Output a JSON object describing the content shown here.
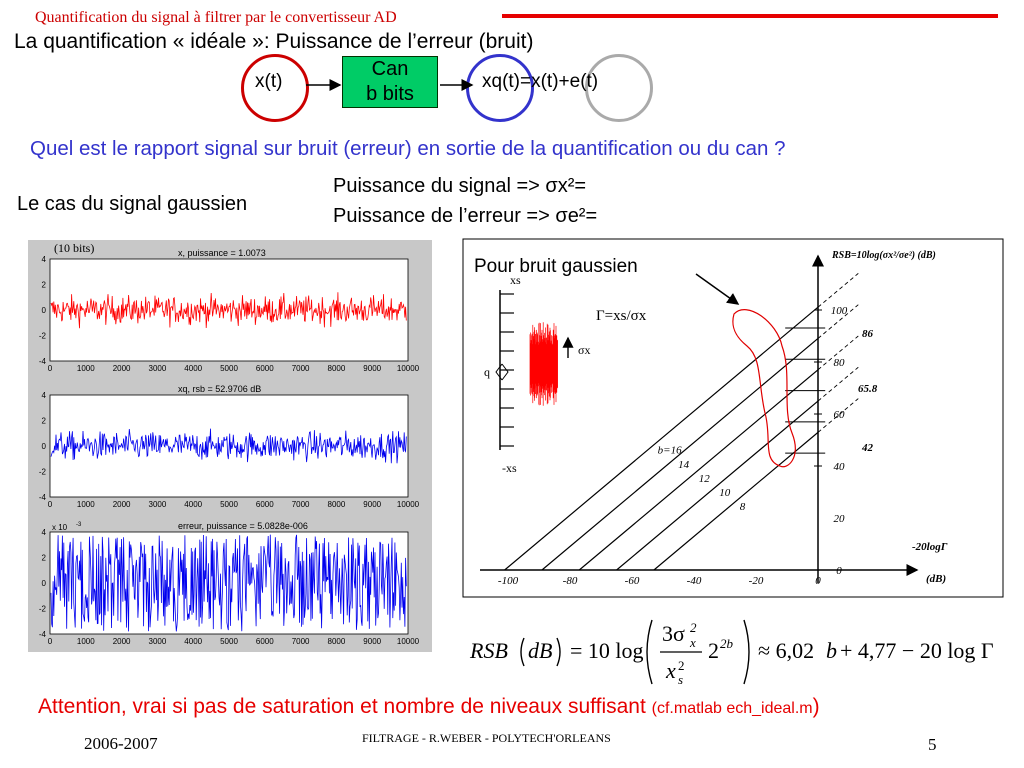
{
  "header": {
    "title": "Quantification du signal à filtrer par le convertisseur AD",
    "accent_color": "#e60000"
  },
  "subtitle": "La quantification « idéale »: Puissance de l’erreur (bruit)",
  "block_diagram": {
    "input": "x(t)",
    "converter_line1": "Can",
    "converter_line2": "b bits",
    "output": "xq(t)=x(t)+e(t)",
    "input_circle_color": "#cc0000",
    "output_circle_color": "#3333cc",
    "error_circle_color": "#aaaaaa",
    "converter_color": "#00cc66"
  },
  "question": "Quel est le rapport signal sur bruit (erreur) en sortie de la quantification ou du can ?",
  "gaussian_case": {
    "label": "Le cas du signal gaussien",
    "signal_power": "Puissance du signal => σx²=",
    "error_power": "Puissance de l’erreur => σe²="
  },
  "matlab_plots": {
    "bits_label": "(10 bits)",
    "x_ticks": [
      "0",
      "1000",
      "2000",
      "3000",
      "4000",
      "5000",
      "6000",
      "7000",
      "8000",
      "9000",
      "10000"
    ],
    "panels": [
      {
        "title": "x, puissance = 1.0073",
        "y_ticks": [
          "4",
          "2",
          "0",
          "-2",
          "-4"
        ],
        "color": "#ff0000",
        "multiplier": "",
        "amp": 1.0
      },
      {
        "title": "xq, rsb = 52.9706 dB",
        "y_ticks": [
          "4",
          "2",
          "0",
          "-2",
          "-4"
        ],
        "color": "#0000ee",
        "multiplier": "",
        "amp": 1.0
      },
      {
        "title": "erreur, puissance = 5.0828e-006",
        "y_ticks": [
          "4",
          "2",
          "0",
          "-2",
          "-4"
        ],
        "color": "#0000ee",
        "multiplier": "x 10",
        "exponent": "-3",
        "amp": 1.7
      }
    ]
  },
  "rsb_chart": {
    "callout": "Pour bruit gaussien",
    "gamma_def": "Γ=xs/σx",
    "title": "RSB=10log(σx²/σe²) (dB)",
    "x_axis_label": "-20logΓ",
    "x_unit": "(dB)",
    "x_ticks": [
      "-100",
      "-80",
      "-60",
      "-40",
      "-20",
      "0"
    ],
    "y_ticks": [
      "0",
      "20",
      "40",
      "60",
      "80",
      "100"
    ],
    "lines": [
      {
        "label": "b=16",
        "b": 16
      },
      {
        "label": "14",
        "b": 14
      },
      {
        "label": "12",
        "b": 12
      },
      {
        "label": "10",
        "b": 10
      },
      {
        "label": "8",
        "b": 8
      }
    ],
    "annotations": [
      "86",
      "65.8",
      "42"
    ],
    "quantizer_labels": {
      "top": "xs",
      "bottom": "-xs",
      "step": "q",
      "sigma": "σx"
    }
  },
  "formula": "RSB(dB) = 10log( 3σx²/xs² · 2^2b ) ≈ 6,02b + 4,77 − 20log Γ",
  "attention": {
    "main": "Attention, vrai si pas de saturation et nombre de niveaux suffisant ",
    "ref": "(cf.matlab ech_ideal.m",
    "close": ")"
  },
  "footer": {
    "year": "2006-2007",
    "center": "FILTRAGE  - R.WEBER - POLYTECH'ORLEANS",
    "page": "5"
  }
}
